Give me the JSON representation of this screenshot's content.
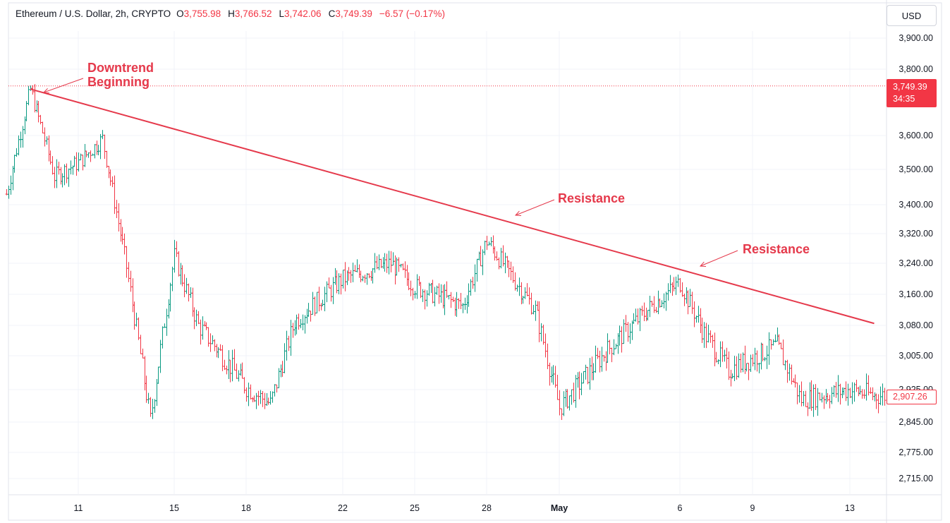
{
  "header": {
    "symbol": "Ethereum / U.S. Dollar, 2h, CRYPTO",
    "open_label": "O",
    "open_value": "3,755.98",
    "high_label": "H",
    "high_value": "3,766.52",
    "low_label": "L",
    "low_value": "3,742.06",
    "close_label": "C",
    "close_value": "3,749.39",
    "change": "−6.57 (−0.17%)"
  },
  "currency_button": "USD",
  "price_tag": {
    "price": "3,749.39",
    "countdown": "34:35"
  },
  "low_tag": "2,907.26",
  "annotations": {
    "downtrend": [
      "Downtrend",
      "Beginning"
    ],
    "resistance_1": "Resistance",
    "resistance_2": "Resistance"
  },
  "colors": {
    "up": "#089981",
    "down": "#f23645",
    "trendline": "#e5394b",
    "grid": "#f0f3fa"
  },
  "chart_data": {
    "type": "ohlc-bar",
    "title": "Ethereum / U.S. Dollar, 2h, CRYPTO",
    "y_ticks": [
      "3,900.00",
      "3,800.00",
      "3,600.00",
      "3,500.00",
      "3,400.00",
      "3,320.00",
      "3,240.00",
      "3,160.00",
      "3,080.00",
      "3,005.00",
      "2,925.00",
      "2,845.00",
      "2,775.00",
      "2,715.00"
    ],
    "x_ticks": [
      "11",
      "15",
      "18",
      "22",
      "25",
      "28",
      "May",
      "6",
      "9",
      "13"
    ],
    "current_price": 3749.39,
    "trendline": {
      "from": {
        "date": "Apr 9",
        "price": 3740
      },
      "to": {
        "date": "May 14",
        "price": 3085
      }
    },
    "series_anchors": [
      {
        "date": "Apr 8",
        "price": 3430
      },
      {
        "date": "Apr 9",
        "price": 3740
      },
      {
        "date": "Apr 10",
        "price": 3480
      },
      {
        "date": "Apr 11",
        "price": 3520
      },
      {
        "date": "Apr 12",
        "price": 3590
      },
      {
        "date": "Apr 13",
        "price": 3230
      },
      {
        "date": "Apr 14",
        "price": 2850
      },
      {
        "date": "Apr 15",
        "price": 3260
      },
      {
        "date": "Apr 16",
        "price": 3080
      },
      {
        "date": "Apr 18",
        "price": 2930
      },
      {
        "date": "Apr 19",
        "price": 2890
      },
      {
        "date": "Apr 20",
        "price": 3090
      },
      {
        "date": "Apr 22",
        "price": 3200
      },
      {
        "date": "Apr 24",
        "price": 3240
      },
      {
        "date": "Apr 25",
        "price": 3180
      },
      {
        "date": "Apr 27",
        "price": 3130
      },
      {
        "date": "Apr 28",
        "price": 3300
      },
      {
        "date": "Apr 29",
        "price": 3210
      },
      {
        "date": "Apr 30",
        "price": 3120
      },
      {
        "date": "May 1",
        "price": 2880
      },
      {
        "date": "May 3",
        "price": 3020
      },
      {
        "date": "May 5",
        "price": 3140
      },
      {
        "date": "May 6",
        "price": 3190
      },
      {
        "date": "May 7",
        "price": 3060
      },
      {
        "date": "May 8",
        "price": 2970
      },
      {
        "date": "May 10",
        "price": 3030
      },
      {
        "date": "May 11",
        "price": 2900
      },
      {
        "date": "May 13",
        "price": 2925
      },
      {
        "date": "May 14",
        "price": 2910
      }
    ]
  }
}
